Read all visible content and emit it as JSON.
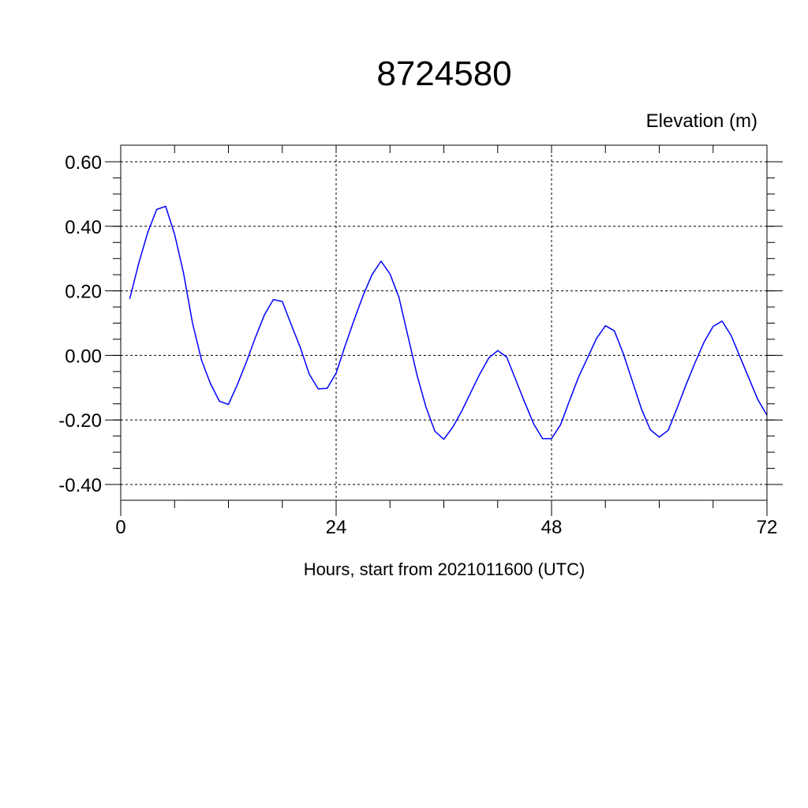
{
  "chart_data": {
    "type": "line",
    "title": "8724580",
    "ylabel": "Elevation (m)",
    "xlabel": "Hours, start from 2021011600 (UTC)",
    "xlim": [
      0,
      72
    ],
    "ylim": [
      -0.4,
      0.6
    ],
    "x_ticks": [
      0,
      24,
      48,
      72
    ],
    "x_tick_labels": [
      "0",
      "24",
      "48",
      "72"
    ],
    "y_ticks": [
      -0.4,
      -0.2,
      0.0,
      0.2,
      0.4,
      0.6
    ],
    "y_tick_labels": [
      "-0.40",
      "-0.20",
      "0.00",
      "0.20",
      "0.40",
      "0.60"
    ],
    "grid": true,
    "legend": "none",
    "series": [
      {
        "color": "#0000ff",
        "x": [
          1,
          2,
          3,
          4,
          5,
          6,
          7,
          8,
          9,
          10,
          11,
          12,
          13,
          14,
          15,
          16,
          17,
          18,
          19,
          20,
          21,
          22,
          23,
          24,
          25,
          26,
          27,
          28,
          29,
          30,
          31,
          32,
          33,
          34,
          35,
          36,
          37,
          38,
          39,
          40,
          41,
          42,
          43,
          44,
          45,
          46,
          47,
          48,
          49,
          50,
          51,
          52,
          53,
          54,
          55,
          56,
          57,
          58,
          59,
          60,
          61,
          62,
          63,
          64,
          65,
          66,
          67,
          68,
          69,
          70,
          71,
          72
        ],
        "y": [
          0.175,
          0.285,
          0.38,
          0.452,
          0.462,
          0.375,
          0.255,
          0.1,
          -0.015,
          -0.088,
          -0.142,
          -0.152,
          -0.09,
          -0.02,
          0.055,
          0.125,
          0.173,
          0.167,
          0.095,
          0.025,
          -0.058,
          -0.104,
          -0.102,
          -0.055,
          0.03,
          0.11,
          0.185,
          0.25,
          0.292,
          0.252,
          0.18,
          0.06,
          -0.06,
          -0.16,
          -0.235,
          -0.26,
          -0.222,
          -0.172,
          -0.115,
          -0.058,
          -0.008,
          0.015,
          -0.005,
          -0.075,
          -0.145,
          -0.212,
          -0.258,
          -0.258,
          -0.215,
          -0.14,
          -0.068,
          -0.008,
          0.052,
          0.092,
          0.076,
          0.005,
          -0.08,
          -0.165,
          -0.23,
          -0.253,
          -0.232,
          -0.162,
          -0.09,
          -0.022,
          0.042,
          0.09,
          0.106,
          0.062,
          -0.005,
          -0.072,
          -0.138,
          -0.185
        ]
      }
    ]
  }
}
